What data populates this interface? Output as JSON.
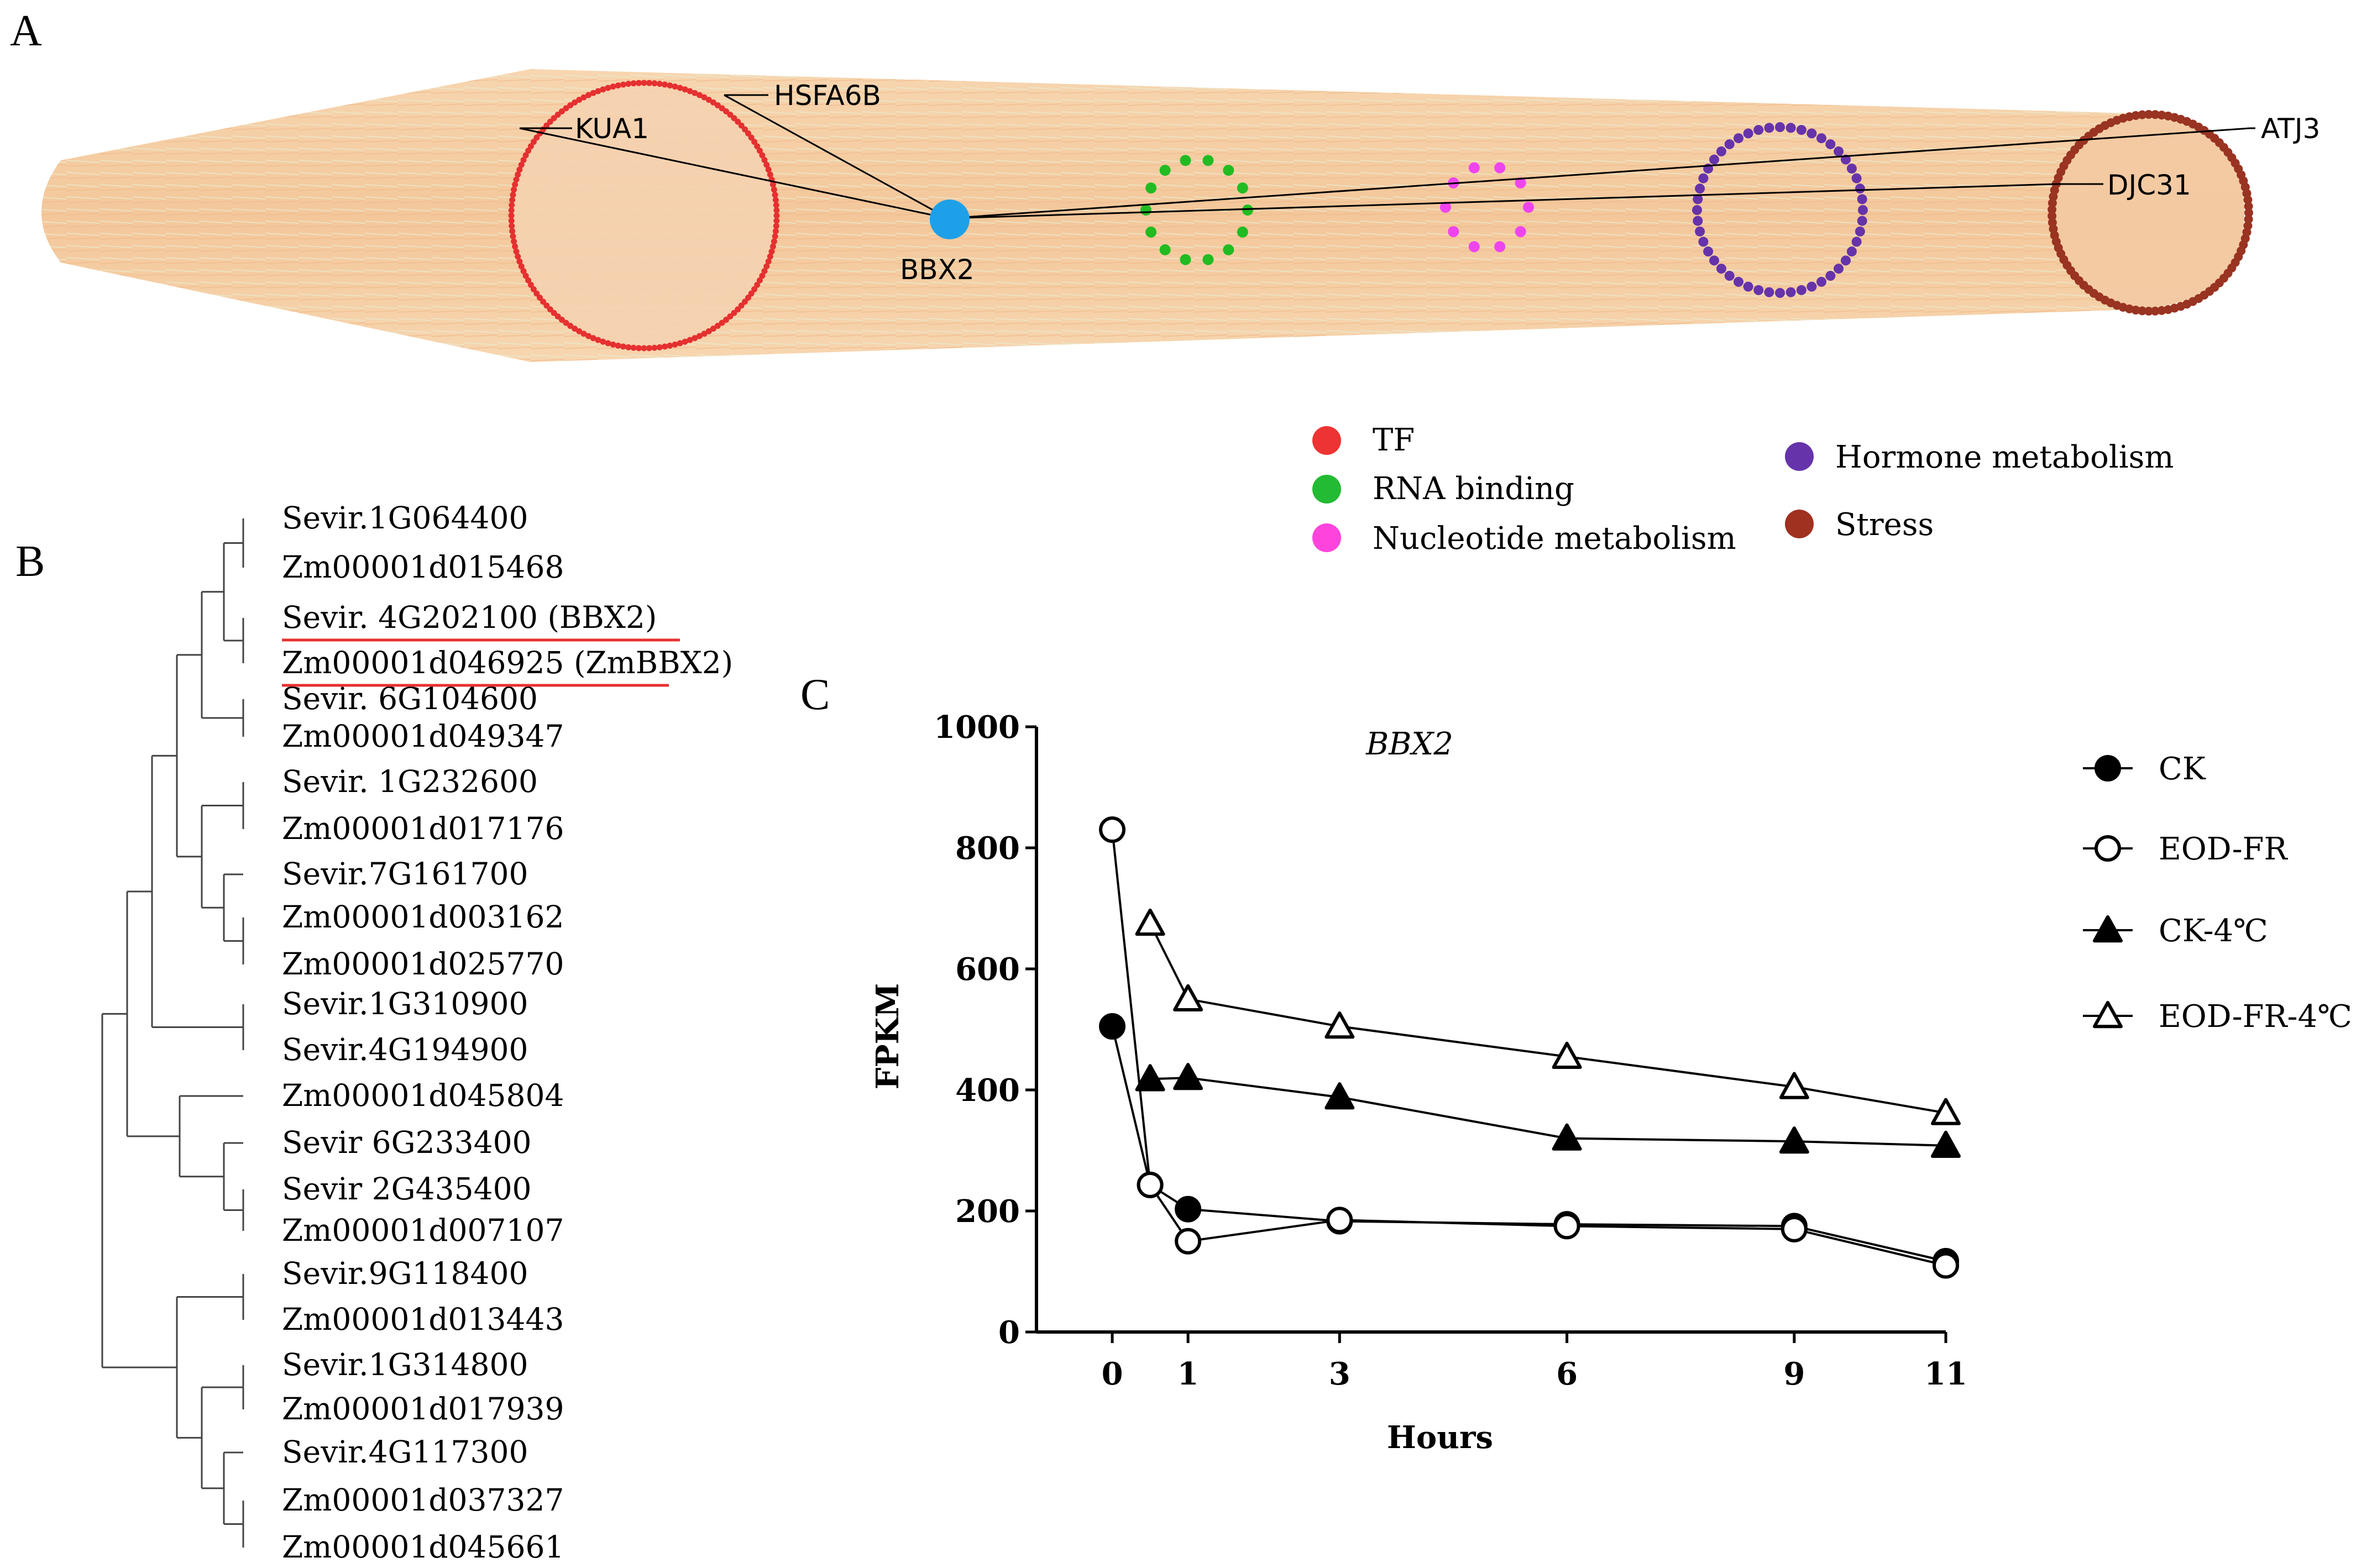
{
  "panels": {
    "a": "A",
    "b": "B",
    "c": "C"
  },
  "network": {
    "hub": "BBX2",
    "labels": {
      "kua1": "KUA1",
      "hsfa6b": "HSFA6B",
      "atj3": "ATJ3",
      "djc31": "DJC31"
    },
    "colors": {
      "tf": "#e53030",
      "rna": "#22bb22",
      "nucleotide": "#ee44ee",
      "hormone": "#6633aa",
      "stress": "#993322",
      "hub": "#1ea0e8",
      "band": "#f5cfa4"
    },
    "legend": [
      {
        "label": "TF",
        "color": "#ee3333"
      },
      {
        "label": "RNA binding",
        "color": "#22bb33"
      },
      {
        "label": "Nucleotide metabolism",
        "color": "#ff44dd"
      },
      {
        "label": "Hormone metabolism",
        "color": "#6633aa"
      },
      {
        "label": "Stress",
        "color": "#a03020"
      }
    ]
  },
  "tree": {
    "leaves": [
      "Sevir.1G064400",
      "Zm00001d015468",
      "Sevir. 4G202100 (BBX2)",
      "Zm00001d046925 (ZmBBX2)",
      "Sevir. 6G104600",
      "Zm00001d049347",
      "Sevir. 1G232600",
      "Zm00001d017176",
      "Sevir.7G161700",
      "Zm00001d003162",
      "Zm00001d025770",
      "Sevir.1G310900",
      "Sevir.4G194900",
      "Zm00001d045804",
      "Sevir 6G233400",
      "Sevir 2G435400",
      "Zm00001d007107",
      "Sevir.9G118400",
      "Zm00001d013443",
      "Sevir.1G314800",
      "Zm00001d017939",
      "Sevir.4G117300",
      "Zm00001d037327",
      "Zm00001d045661"
    ],
    "highlight_color": "#e83030"
  },
  "chart_data": {
    "type": "line",
    "title": "BBX2",
    "xlabel": "Hours",
    "ylabel": "FPKM",
    "xticks": [
      0,
      1,
      3,
      6,
      9,
      11
    ],
    "yticks": [
      0,
      200,
      400,
      600,
      800,
      1000
    ],
    "ylim": [
      0,
      1000
    ],
    "xlim": [
      -1,
      11
    ],
    "series": [
      {
        "name": "CK",
        "marker": "filled-circle",
        "x": [
          0,
          0.5,
          1,
          3,
          6,
          9,
          11
        ],
        "y": [
          505,
          243,
          203,
          183,
          178,
          175,
          117
        ]
      },
      {
        "name": "EOD-FR",
        "marker": "open-circle",
        "x": [
          0,
          0.5,
          1,
          3,
          6,
          9,
          11
        ],
        "y": [
          830,
          243,
          150,
          185,
          175,
          170,
          110
        ]
      },
      {
        "name": "CK-4℃",
        "marker": "filled-triangle",
        "x": [
          0.5,
          1,
          3,
          6,
          9,
          11
        ],
        "y": [
          418,
          420,
          388,
          320,
          315,
          308
        ]
      },
      {
        "name": "EOD-FR-4℃",
        "marker": "open-triangle",
        "x": [
          0.5,
          1,
          3,
          6,
          9,
          11
        ],
        "y": [
          675,
          550,
          505,
          455,
          405,
          362
        ]
      }
    ]
  }
}
